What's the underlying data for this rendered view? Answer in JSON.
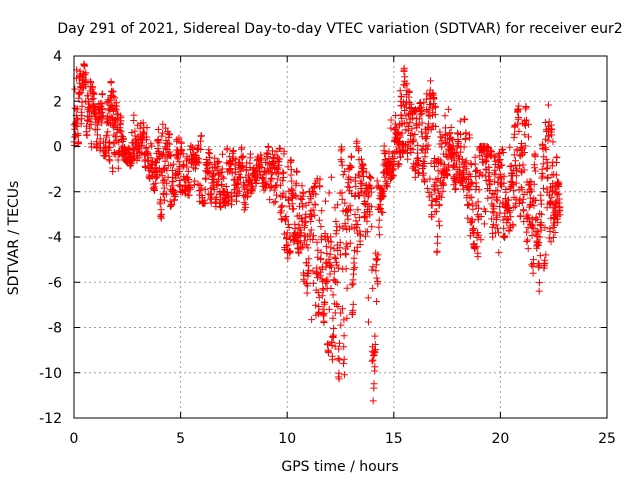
{
  "chart_data": {
    "type": "scatter",
    "title": "Day 291 of 2021, Sidereal Day-to-day VTEC variation (SDTVAR) for receiver eur2",
    "xlabel": "GPS time / hours",
    "ylabel": "SDTVAR / TECUs",
    "xlim": [
      0,
      25
    ],
    "ylim": [
      -12,
      4
    ],
    "xticks": [
      0,
      5,
      10,
      15,
      20,
      25
    ],
    "yticks": [
      4,
      2,
      0,
      -2,
      -4,
      -6,
      -8,
      -10,
      -12
    ],
    "grid": true,
    "marker": "+",
    "color": "#ff0000",
    "series": [
      {
        "name": "SDTVAR",
        "envelope": [
          {
            "x": 0.0,
            "low": -0.8,
            "high": 3.2
          },
          {
            "x": 0.4,
            "low": 1.0,
            "high": 3.8
          },
          {
            "x": 0.8,
            "low": 0.0,
            "high": 2.8
          },
          {
            "x": 1.2,
            "low": -0.4,
            "high": 1.8
          },
          {
            "x": 1.6,
            "low": -0.4,
            "high": 3.4
          },
          {
            "x": 1.9,
            "low": -1.4,
            "high": 2.2
          },
          {
            "x": 2.3,
            "low": -0.5,
            "high": 1.0
          },
          {
            "x": 2.8,
            "low": -1.0,
            "high": 1.6
          },
          {
            "x": 3.3,
            "low": -0.8,
            "high": 1.0
          },
          {
            "x": 3.8,
            "low": -2.0,
            "high": 0.8
          },
          {
            "x": 4.2,
            "low": -3.6,
            "high": 1.0
          },
          {
            "x": 4.6,
            "low": -2.5,
            "high": 0.3
          },
          {
            "x": 5.0,
            "low": -2.0,
            "high": 0.6
          },
          {
            "x": 5.5,
            "low": -2.2,
            "high": 0.0
          },
          {
            "x": 6.0,
            "low": -2.5,
            "high": 0.5
          },
          {
            "x": 6.5,
            "low": -2.5,
            "high": -0.5
          },
          {
            "x": 7.0,
            "low": -3.0,
            "high": 0.0
          },
          {
            "x": 7.5,
            "low": -2.5,
            "high": -0.2
          },
          {
            "x": 8.0,
            "low": -2.8,
            "high": 0.0
          },
          {
            "x": 8.5,
            "low": -1.6,
            "high": -0.6
          },
          {
            "x": 9.0,
            "low": -2.0,
            "high": 0.2
          },
          {
            "x": 9.5,
            "low": -3.0,
            "high": 0.0
          },
          {
            "x": 10.0,
            "low": -5.0,
            "high": -0.3
          },
          {
            "x": 10.4,
            "low": -4.0,
            "high": -1.0
          },
          {
            "x": 10.8,
            "low": -6.0,
            "high": -2.0
          },
          {
            "x": 11.2,
            "low": -8.2,
            "high": -2.0
          },
          {
            "x": 11.6,
            "low": -7.0,
            "high": -0.8
          },
          {
            "x": 12.0,
            "low": -9.5,
            "high": -1.0
          },
          {
            "x": 12.4,
            "low": -10.3,
            "high": 0.8
          },
          {
            "x": 12.8,
            "low": -10.0,
            "high": -1.5
          },
          {
            "x": 13.2,
            "low": -6.0,
            "high": 0.5
          },
          {
            "x": 13.6,
            "low": -3.0,
            "high": -1.0
          },
          {
            "x": 14.0,
            "low": -12.0,
            "high": -1.5
          },
          {
            "x": 14.4,
            "low": -3.5,
            "high": 0.5
          },
          {
            "x": 14.8,
            "low": -1.5,
            "high": 1.0
          },
          {
            "x": 15.2,
            "low": -1.0,
            "high": 2.5
          },
          {
            "x": 15.5,
            "low": 0.0,
            "high": 3.5
          },
          {
            "x": 15.9,
            "low": -1.5,
            "high": 1.5
          },
          {
            "x": 16.3,
            "low": -1.0,
            "high": 2.0
          },
          {
            "x": 16.7,
            "low": -2.5,
            "high": 3.0
          },
          {
            "x": 17.0,
            "low": -5.0,
            "high": 1.5
          },
          {
            "x": 17.4,
            "low": -1.0,
            "high": 2.6
          },
          {
            "x": 17.8,
            "low": -2.0,
            "high": 0.5
          },
          {
            "x": 18.2,
            "low": -1.5,
            "high": 1.5
          },
          {
            "x": 18.6,
            "low": -4.0,
            "high": 0.5
          },
          {
            "x": 19.0,
            "low": -5.0,
            "high": 0.0
          },
          {
            "x": 19.4,
            "low": -2.5,
            "high": 0.0
          },
          {
            "x": 19.8,
            "low": -5.0,
            "high": -0.5
          },
          {
            "x": 20.2,
            "low": -4.0,
            "high": 0.0
          },
          {
            "x": 20.6,
            "low": -3.5,
            "high": 0.5
          },
          {
            "x": 21.0,
            "low": -3.0,
            "high": 2.5
          },
          {
            "x": 21.4,
            "low": -5.0,
            "high": 1.0
          },
          {
            "x": 21.8,
            "low": -6.8,
            "high": -1.5
          },
          {
            "x": 22.2,
            "low": -4.5,
            "high": 2.5
          },
          {
            "x": 22.5,
            "low": -4.0,
            "high": 0.0
          },
          {
            "x": 22.8,
            "low": -3.0,
            "high": -1.0
          }
        ]
      }
    ]
  }
}
